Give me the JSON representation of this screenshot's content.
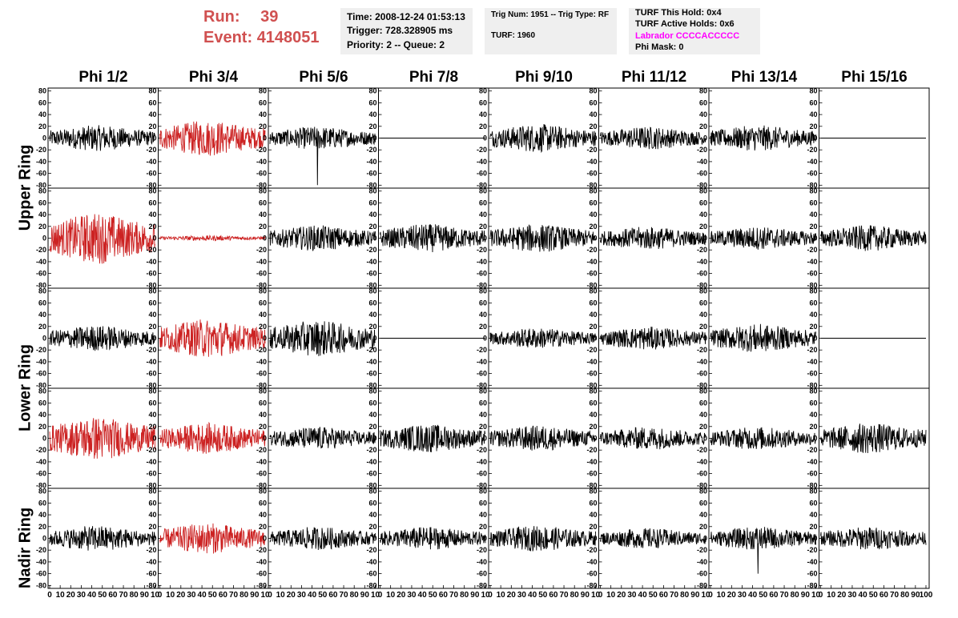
{
  "header": {
    "run_label": "Run:",
    "run_value": "39",
    "event_label": "Event:",
    "event_value": "4148051",
    "time": "Time: 2008-12-24 01:53:13",
    "trigger": "Trigger: 728.328905 ms",
    "priority": "Priority: 2 -- Queue: 2",
    "trig_num": "Trig Num: 1951 -- Trig Type: RF",
    "turf": "TURF: 1960",
    "turf_this_hold": "TURF This Hold: 0x4",
    "turf_active_holds": "TURF Active Holds: 0x6",
    "labrador": "Labrador CCCCACCCCC",
    "phi_mask": "Phi Mask: 0"
  },
  "colors": {
    "run_text": "#d05050",
    "labrador_text": "#ff00ff",
    "highlight_trace": "#cc2222",
    "normal_trace": "#000000",
    "info_bg": "#efefef"
  },
  "chart_data": {
    "type": "line",
    "columns": [
      "Phi 1/2",
      "Phi 3/4",
      "Phi 5/6",
      "Phi 7/8",
      "Phi 9/10",
      "Phi 11/12",
      "Phi 13/14",
      "Phi 15/16"
    ],
    "rows": [
      {
        "name": "Upper Ring",
        "label": "Upper Ring"
      },
      {
        "name": "Upper Ring (2)",
        "label": ""
      },
      {
        "name": "Lower Ring",
        "label": "Lower Ring"
      },
      {
        "name": "Lower Ring (2)",
        "label": ""
      },
      {
        "name": "Nadir Ring",
        "label": "Nadir Ring"
      }
    ],
    "ylim": [
      -85,
      85
    ],
    "xlim": [
      0,
      100
    ],
    "y_ticks": [
      80,
      60,
      40,
      20,
      0,
      -20,
      -40,
      -60,
      -80
    ],
    "x_ticks": [
      0,
      10,
      20,
      30,
      40,
      50,
      60,
      70,
      80,
      90,
      100
    ],
    "x_tick_labels_panel": [
      "0",
      "10",
      "20",
      "30",
      "40",
      "50",
      "60",
      "70",
      "80",
      "90",
      "10"
    ],
    "x_tick_labels_last": [
      "0",
      "10",
      "20",
      "30",
      "40",
      "50",
      "60",
      "70",
      "80",
      "90",
      "100"
    ],
    "panels": [
      [
        {
          "amp": 20,
          "hl": false
        },
        {
          "amp": 28,
          "hl": true
        },
        {
          "amp": 18,
          "hl": false,
          "spike": -80
        },
        {
          "amp": 0,
          "hl": false
        },
        {
          "amp": 22,
          "hl": false
        },
        {
          "amp": 18,
          "hl": false
        },
        {
          "amp": 20,
          "hl": false
        },
        {
          "amp": 0,
          "hl": false
        }
      ],
      [
        {
          "amp": 40,
          "hl": true
        },
        {
          "amp": 4,
          "hl": true
        },
        {
          "amp": 20,
          "hl": false
        },
        {
          "amp": 22,
          "hl": false
        },
        {
          "amp": 22,
          "hl": false
        },
        {
          "amp": 18,
          "hl": false
        },
        {
          "amp": 18,
          "hl": false
        },
        {
          "amp": 20,
          "hl": false
        }
      ],
      [
        {
          "amp": 20,
          "hl": false
        },
        {
          "amp": 30,
          "hl": true
        },
        {
          "amp": 28,
          "hl": false
        },
        {
          "amp": 0,
          "hl": false
        },
        {
          "amp": 16,
          "hl": false
        },
        {
          "amp": 18,
          "hl": false
        },
        {
          "amp": 22,
          "hl": false
        },
        {
          "amp": 0,
          "hl": false
        }
      ],
      [
        {
          "amp": 34,
          "hl": true
        },
        {
          "amp": 24,
          "hl": true
        },
        {
          "amp": 18,
          "hl": false
        },
        {
          "amp": 22,
          "hl": false
        },
        {
          "amp": 20,
          "hl": false
        },
        {
          "amp": 18,
          "hl": false
        },
        {
          "amp": 18,
          "hl": false
        },
        {
          "amp": 24,
          "hl": false
        }
      ],
      [
        {
          "amp": 20,
          "hl": false
        },
        {
          "amp": 24,
          "hl": true
        },
        {
          "amp": 18,
          "hl": false
        },
        {
          "amp": 18,
          "hl": false
        },
        {
          "amp": 20,
          "hl": false
        },
        {
          "amp": 16,
          "hl": false
        },
        {
          "amp": 18,
          "hl": false,
          "spike": -60
        },
        {
          "amp": 18,
          "hl": false
        }
      ]
    ]
  }
}
